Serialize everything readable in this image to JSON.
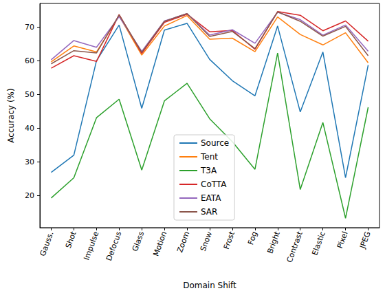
{
  "chart_data": {
    "type": "line",
    "x_label": "Domain Shift",
    "y_label": "Accuracy (%)",
    "categories": [
      "Gauss.",
      "Shot",
      "Impulse",
      "Defocus",
      "Glass",
      "Motion",
      "Zoom",
      "Snow",
      "Frost",
      "Fog",
      "Bright",
      "Contrast",
      "Elastic",
      "Pixel",
      "JPEG"
    ],
    "series": [
      {
        "name": "Source",
        "color": "#1f77b4",
        "values": [
          26.9,
          32.0,
          60.0,
          70.6,
          45.9,
          69.1,
          71.1,
          60.4,
          54.1,
          49.6,
          70.3,
          44.8,
          62.6,
          25.3,
          58.7
        ]
      },
      {
        "name": "Tent",
        "color": "#ff7f0e",
        "values": [
          59.7,
          64.4,
          62.6,
          73.3,
          61.7,
          70.3,
          73.4,
          66.4,
          66.7,
          62.7,
          73.0,
          67.8,
          64.7,
          68.3,
          59.4
        ]
      },
      {
        "name": "T3A",
        "color": "#2ca02c",
        "values": [
          19.3,
          25.3,
          43.1,
          48.6,
          27.6,
          48.1,
          53.3,
          42.8,
          36.0,
          27.8,
          62.3,
          21.8,
          41.7,
          13.3,
          46.2
        ]
      },
      {
        "name": "CoTTA",
        "color": "#d62728",
        "values": [
          57.8,
          61.5,
          59.8,
          73.7,
          62.2,
          71.4,
          73.8,
          68.6,
          69.0,
          63.4,
          74.6,
          73.5,
          68.9,
          71.8,
          65.8
        ]
      },
      {
        "name": "EATA",
        "color": "#9467bd",
        "values": [
          60.3,
          66.0,
          64.0,
          73.1,
          62.8,
          71.8,
          74.0,
          67.6,
          69.2,
          65.2,
          74.4,
          72.2,
          67.6,
          70.6,
          62.8
        ]
      },
      {
        "name": "SAR",
        "color": "#8c564b",
        "values": [
          59.1,
          63.0,
          62.3,
          73.6,
          62.5,
          71.7,
          74.0,
          67.2,
          68.7,
          63.6,
          74.5,
          71.7,
          67.3,
          70.2,
          61.5
        ]
      }
    ],
    "ylim": [
      10.5,
      77
    ],
    "yticks": [
      20,
      30,
      40,
      50,
      60,
      70
    ],
    "grid": false,
    "legend": "lower center"
  }
}
